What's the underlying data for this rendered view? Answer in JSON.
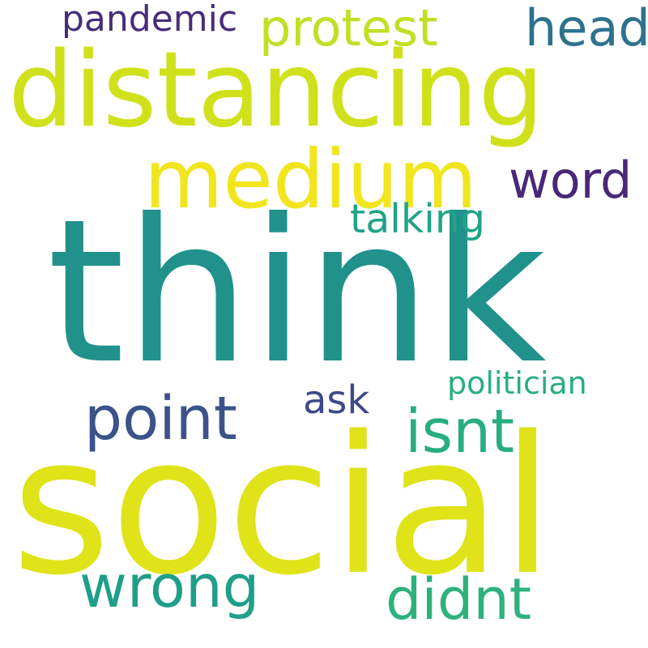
{
  "wordcloud": {
    "words": [
      {
        "id": "social",
        "text": "social",
        "color": "#dfe318"
      },
      {
        "id": "think",
        "text": "think",
        "color": "#21918c"
      },
      {
        "id": "distancing",
        "text": "distancing",
        "color": "#d0e11c"
      },
      {
        "id": "medium",
        "text": "medium",
        "color": "#f1e51d"
      },
      {
        "id": "point",
        "text": "point",
        "color": "#3b528b"
      },
      {
        "id": "isnt",
        "text": "isnt",
        "color": "#27ad81"
      },
      {
        "id": "wrong",
        "text": "wrong",
        "color": "#1f9e89"
      },
      {
        "id": "didnt",
        "text": "didnt",
        "color": "#2db27d"
      },
      {
        "id": "protest",
        "text": "protest",
        "color": "#c2df23"
      },
      {
        "id": "head",
        "text": "head",
        "color": "#2c728e"
      },
      {
        "id": "word",
        "text": "word",
        "color": "#482878"
      },
      {
        "id": "talking",
        "text": "talking",
        "color": "#20a386"
      },
      {
        "id": "ask",
        "text": "ask",
        "color": "#3e4989"
      },
      {
        "id": "pandemic",
        "text": "pandemic",
        "color": "#472d7b"
      },
      {
        "id": "politician",
        "text": "politician",
        "color": "#28ae80"
      }
    ]
  }
}
